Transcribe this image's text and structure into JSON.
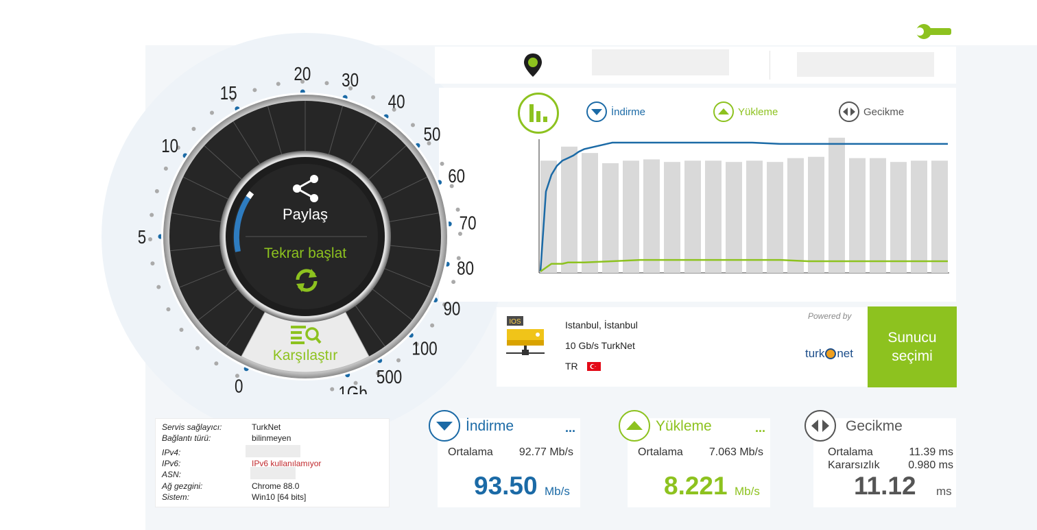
{
  "colors": {
    "download": "#1b6aa6",
    "upload": "#8dc21f",
    "latency": "#555555",
    "bars": "#d9d9d9",
    "server_button": "#8dc21f"
  },
  "gauge": {
    "ticks": [
      "0",
      "5",
      "10",
      "15",
      "20",
      "30",
      "40",
      "50",
      "60",
      "70",
      "80",
      "90",
      "100",
      "500",
      "1Gb"
    ],
    "share_label": "Paylaş",
    "restart_label": "Tekrar başlat",
    "compare_label": "Karşılaştır",
    "icons": [
      "share-icon",
      "refresh-icon",
      "compare-icon",
      "location-pin-icon",
      "settings-wrench-icon"
    ]
  },
  "legend": {
    "download": "İndirme",
    "upload": "Yükleme",
    "latency": "Gecikme"
  },
  "chart_data": {
    "type": "bar",
    "bars_relative": [
      0.88,
      0.99,
      0.94,
      0.86,
      0.88,
      0.89,
      0.87,
      0.88,
      0.88,
      0.87,
      0.88,
      0.87,
      0.9,
      0.91,
      1.06,
      0.9,
      0.9,
      0.87,
      0.88,
      0.88
    ],
    "download_relative": [
      0.0,
      0.62,
      0.75,
      0.82,
      0.86,
      0.88,
      0.9,
      0.93,
      0.95,
      1.0,
      1.0,
      1.0,
      1.0,
      1.0,
      1.0,
      0.99,
      0.99,
      0.99,
      0.99,
      0.99,
      0.99,
      0.99
    ],
    "upload_relative": [
      0.0,
      0.03,
      0.06,
      0.06,
      0.06,
      0.07,
      0.07,
      0.07,
      0.07,
      0.08,
      0.09,
      0.09,
      0.09,
      0.09,
      0.09,
      0.09,
      0.08,
      0.08,
      0.08,
      0.08,
      0.08,
      0.08
    ]
  },
  "server": {
    "badge": "IOS",
    "city": "Istanbul, İstanbul",
    "name": "10 Gb/s TurkNet",
    "country": "TR",
    "powered_by": "Powered by",
    "logo_left": "turk",
    "logo_right": "net",
    "select_button": "Sunucu seçimi"
  },
  "info": [
    {
      "key": "Servis sağlayıcı:",
      "value": "TurkNet"
    },
    {
      "key": "Bağlantı türü:",
      "value": "bilinmeyen"
    },
    {
      "key": "IPv4:",
      "value": ""
    },
    {
      "key": "IPv6:",
      "value": "IPv6 kullanılamıyor"
    },
    {
      "key": "ASN:",
      "value": ""
    },
    {
      "key": "Ağ gezgini:",
      "value": "Chrome 88.0"
    },
    {
      "key": "Sistem:",
      "value": "Win10 [64 bits]"
    }
  ],
  "download": {
    "title": "İndirme",
    "more": "...",
    "avg_label": "Ortalama",
    "avg_value": "92.77 Mb/s",
    "value": "93.50",
    "unit": "Mb/s"
  },
  "upload": {
    "title": "Yükleme",
    "more": "...",
    "avg_label": "Ortalama",
    "avg_value": "7.063 Mb/s",
    "value": "8.221",
    "unit": "Mb/s"
  },
  "latency": {
    "title": "Gecikme",
    "avg_label": "Ortalama",
    "avg_value": "11.39 ms",
    "jitter_label": "Kararsızlık",
    "jitter_value": "0.980 ms",
    "value": "11.12",
    "unit": "ms"
  }
}
